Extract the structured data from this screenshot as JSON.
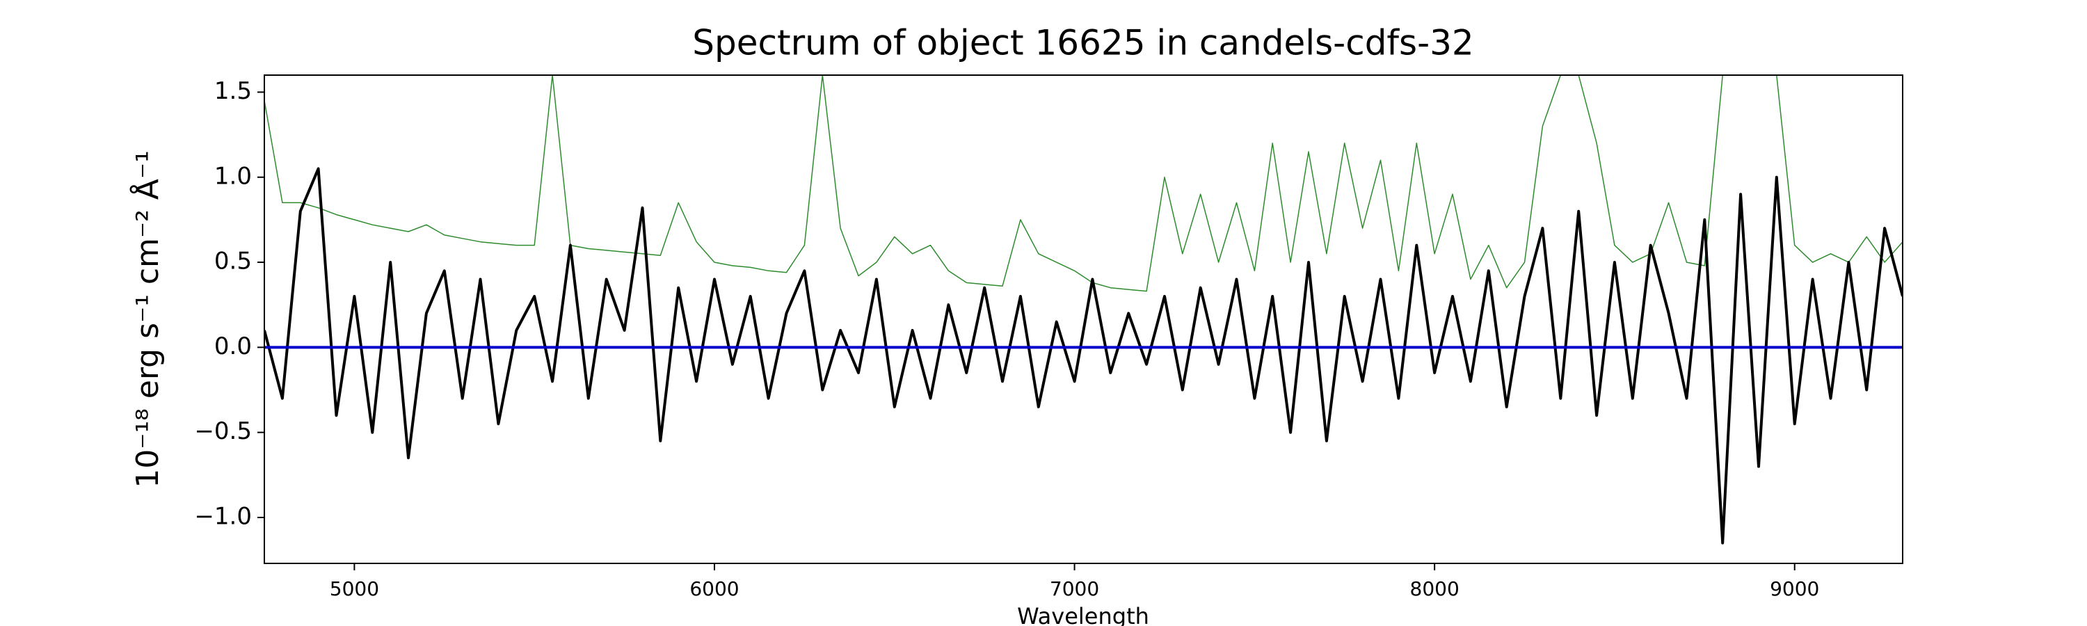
{
  "chart_data": {
    "type": "line",
    "title": "Spectrum of object 16625 in candels-cdfs-32",
    "xlabel": "Wavelength",
    "ylabel": "10⁻¹⁸ erg s⁻¹ cm⁻² Å⁻¹",
    "xlim": [
      4750,
      9300
    ],
    "ylim": [
      -1.27,
      1.6
    ],
    "xticks": [
      5000,
      6000,
      7000,
      8000,
      9000
    ],
    "yticks": [
      {
        "value": -1.0,
        "label": "−1.0"
      },
      {
        "value": -0.5,
        "label": "−0.5"
      },
      {
        "value": 0,
        "label": "0.0"
      },
      0.5,
      {
        "value": 1.0,
        "label": "1.0"
      },
      1.5
    ],
    "grid": false,
    "x": [
      4750,
      4800,
      4850,
      4900,
      4950,
      5000,
      5050,
      5100,
      5150,
      5200,
      5250,
      5300,
      5350,
      5400,
      5450,
      5500,
      5550,
      5600,
      5650,
      5700,
      5750,
      5800,
      5850,
      5900,
      5950,
      6000,
      6050,
      6100,
      6150,
      6200,
      6250,
      6300,
      6350,
      6400,
      6450,
      6500,
      6550,
      6600,
      6650,
      6700,
      6750,
      6800,
      6850,
      6900,
      6950,
      7000,
      7050,
      7100,
      7150,
      7200,
      7250,
      7300,
      7350,
      7400,
      7450,
      7500,
      7550,
      7600,
      7650,
      7700,
      7750,
      7800,
      7850,
      7900,
      7950,
      8000,
      8050,
      8100,
      8150,
      8200,
      8250,
      8300,
      8350,
      8400,
      8450,
      8500,
      8550,
      8600,
      8650,
      8700,
      8750,
      8800,
      8850,
      8900,
      8950,
      9000,
      9050,
      9100,
      9150,
      9200,
      9250,
      9300
    ],
    "series": [
      {
        "color": "#2e8b2e",
        "width": 1.5,
        "values": [
          1.45,
          0.85,
          0.85,
          0.82,
          0.78,
          0.75,
          0.72,
          0.7,
          0.68,
          0.72,
          0.66,
          0.64,
          0.62,
          0.61,
          0.6,
          0.6,
          1.6,
          0.6,
          0.58,
          0.57,
          0.56,
          0.55,
          0.54,
          0.85,
          0.62,
          0.5,
          0.48,
          0.47,
          0.45,
          0.44,
          0.6,
          1.6,
          0.7,
          0.42,
          0.5,
          0.65,
          0.55,
          0.6,
          0.45,
          0.38,
          0.37,
          0.36,
          0.75,
          0.55,
          0.5,
          0.45,
          0.38,
          0.35,
          0.34,
          0.33,
          1.0,
          0.55,
          0.9,
          0.5,
          0.85,
          0.45,
          1.2,
          0.5,
          1.15,
          0.55,
          1.2,
          0.7,
          1.1,
          0.45,
          1.2,
          0.55,
          0.9,
          0.4,
          0.6,
          0.35,
          0.5,
          1.3,
          1.6,
          1.6,
          1.2,
          0.6,
          0.5,
          0.55,
          0.85,
          0.5,
          0.48,
          1.6,
          1.6,
          1.6,
          1.6,
          0.6,
          0.5,
          0.55,
          0.5,
          0.65,
          0.5,
          0.62
        ]
      },
      {
        "color": "#000000",
        "width": 4,
        "values": [
          0.1,
          -0.3,
          0.8,
          1.05,
          -0.4,
          0.3,
          -0.5,
          0.5,
          -0.65,
          0.2,
          0.45,
          -0.3,
          0.4,
          -0.45,
          0.1,
          0.3,
          -0.2,
          0.6,
          -0.3,
          0.4,
          0.1,
          0.82,
          -0.55,
          0.35,
          -0.2,
          0.4,
          -0.1,
          0.3,
          -0.3,
          0.2,
          0.45,
          -0.25,
          0.1,
          -0.15,
          0.4,
          -0.35,
          0.1,
          -0.3,
          0.25,
          -0.15,
          0.35,
          -0.2,
          0.3,
          -0.35,
          0.15,
          -0.2,
          0.4,
          -0.15,
          0.2,
          -0.1,
          0.3,
          -0.25,
          0.35,
          -0.1,
          0.4,
          -0.3,
          0.3,
          -0.5,
          0.5,
          -0.55,
          0.3,
          -0.2,
          0.4,
          -0.3,
          0.6,
          -0.15,
          0.3,
          -0.2,
          0.45,
          -0.35,
          0.3,
          0.7,
          -0.3,
          0.8,
          -0.4,
          0.5,
          -0.3,
          0.6,
          0.2,
          -0.3,
          0.75,
          -1.15,
          0.9,
          -0.7,
          1.0,
          -0.45,
          0.4,
          -0.3,
          0.5,
          -0.25,
          0.7,
          0.3
        ]
      },
      {
        "color": "#0000cc",
        "width": 4,
        "values": [
          0,
          0,
          0,
          0,
          0,
          0,
          0,
          0,
          0,
          0,
          0,
          0,
          0,
          0,
          0,
          0,
          0,
          0,
          0,
          0,
          0,
          0,
          0,
          0,
          0,
          0,
          0,
          0,
          0,
          0,
          0,
          0,
          0,
          0,
          0,
          0,
          0,
          0,
          0,
          0,
          0,
          0,
          0,
          0,
          0,
          0,
          0,
          0,
          0,
          0,
          0,
          0,
          0,
          0,
          0,
          0,
          0,
          0,
          0,
          0,
          0,
          0,
          0,
          0,
          0,
          0,
          0,
          0,
          0,
          0,
          0,
          0,
          0,
          0,
          0,
          0,
          0,
          0,
          0,
          0,
          0,
          0,
          0,
          0,
          0,
          0,
          0,
          0,
          0,
          0,
          0,
          0
        ]
      }
    ]
  }
}
